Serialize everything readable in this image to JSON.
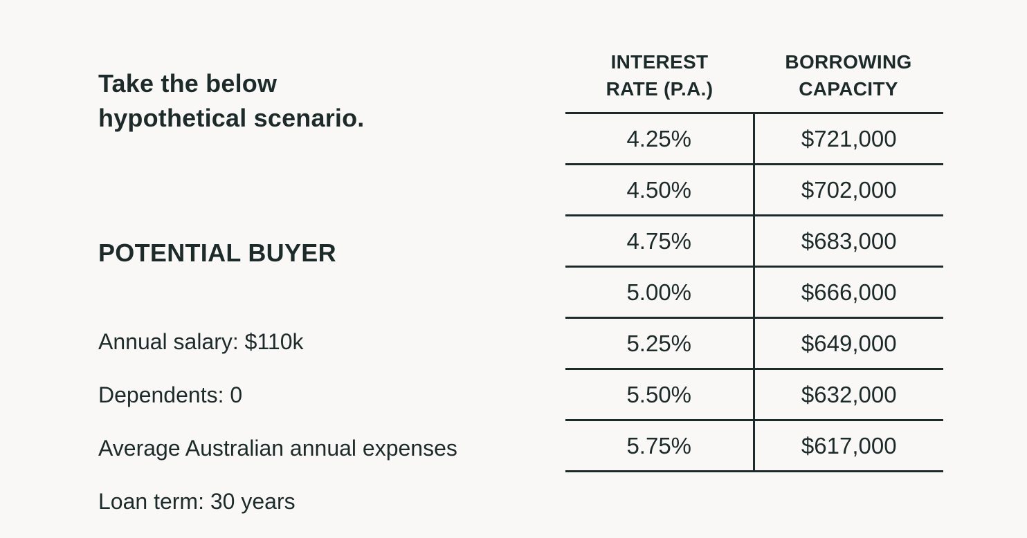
{
  "scenario": {
    "intro_line1": "Take the below",
    "intro_line2": "hypothetical scenario.",
    "section_title": "POTENTIAL BUYER",
    "details": [
      "Annual salary: $110k",
      "Dependents: 0",
      "Average Australian annual expenses",
      "Loan term: 30 years"
    ]
  },
  "table": {
    "headers": {
      "rate_line1": "INTEREST",
      "rate_line2": "RATE (P.A.)",
      "capacity_line1": "BORROWING",
      "capacity_line2": "CAPACITY"
    },
    "rows": [
      {
        "rate": "4.25%",
        "capacity": "$721,000"
      },
      {
        "rate": "4.50%",
        "capacity": "$702,000"
      },
      {
        "rate": "4.75%",
        "capacity": "$683,000"
      },
      {
        "rate": "5.00%",
        "capacity": "$666,000"
      },
      {
        "rate": "5.25%",
        "capacity": "$649,000"
      },
      {
        "rate": "5.50%",
        "capacity": "$632,000"
      },
      {
        "rate": "5.75%",
        "capacity": "$617,000"
      }
    ]
  }
}
